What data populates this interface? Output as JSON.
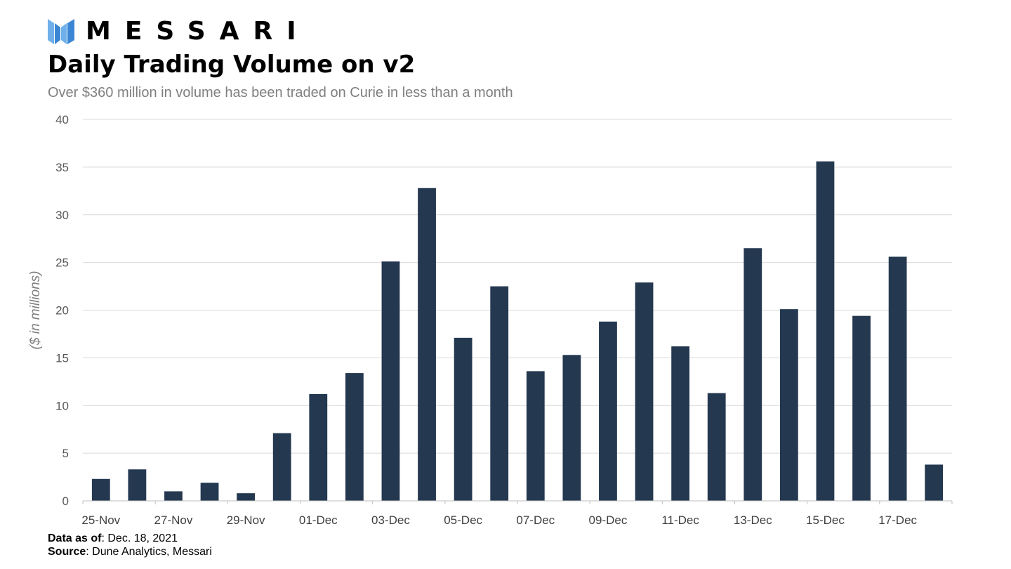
{
  "brand": {
    "name": "MESSARI",
    "logo_icon": "messari-logo-icon",
    "logo_color": "#4a90d9"
  },
  "header": {
    "title": "Daily Trading Volume on v2",
    "subtitle": "Over $360 million in volume has been traded on Curie in less than a month"
  },
  "chart_data": {
    "type": "bar",
    "categories": [
      "25-Nov",
      "26-Nov",
      "27-Nov",
      "28-Nov",
      "29-Nov",
      "30-Nov",
      "01-Dec",
      "02-Dec",
      "03-Dec",
      "04-Dec",
      "05-Dec",
      "06-Dec",
      "07-Dec",
      "08-Dec",
      "09-Dec",
      "10-Dec",
      "11-Dec",
      "12-Dec",
      "13-Dec",
      "14-Dec",
      "15-Dec",
      "16-Dec",
      "17-Dec",
      "18-Dec"
    ],
    "x_tick_labels": [
      "25-Nov",
      "27-Nov",
      "29-Nov",
      "01-Dec",
      "03-Dec",
      "05-Dec",
      "07-Dec",
      "09-Dec",
      "11-Dec",
      "13-Dec",
      "15-Dec",
      "17-Dec"
    ],
    "values": [
      2.3,
      3.3,
      1.0,
      1.9,
      0.8,
      7.1,
      11.2,
      13.4,
      25.1,
      32.8,
      17.1,
      22.5,
      13.6,
      15.3,
      18.8,
      22.9,
      16.2,
      11.3,
      26.5,
      20.1,
      35.6,
      19.4,
      25.6,
      3.8
    ],
    "ylabel": "($ in millions)",
    "ylim": [
      0,
      40
    ],
    "yticks": [
      0,
      5,
      10,
      15,
      20,
      25,
      30,
      35,
      40
    ],
    "grid": true,
    "bar_color": "#243850",
    "grid_color": "#d9d9d9"
  },
  "footer": {
    "data_as_of_label": "Data as of",
    "data_as_of_value": ": Dec. 18, 2021",
    "source_label": "Source",
    "source_value": ": Dune Analytics, Messari"
  }
}
